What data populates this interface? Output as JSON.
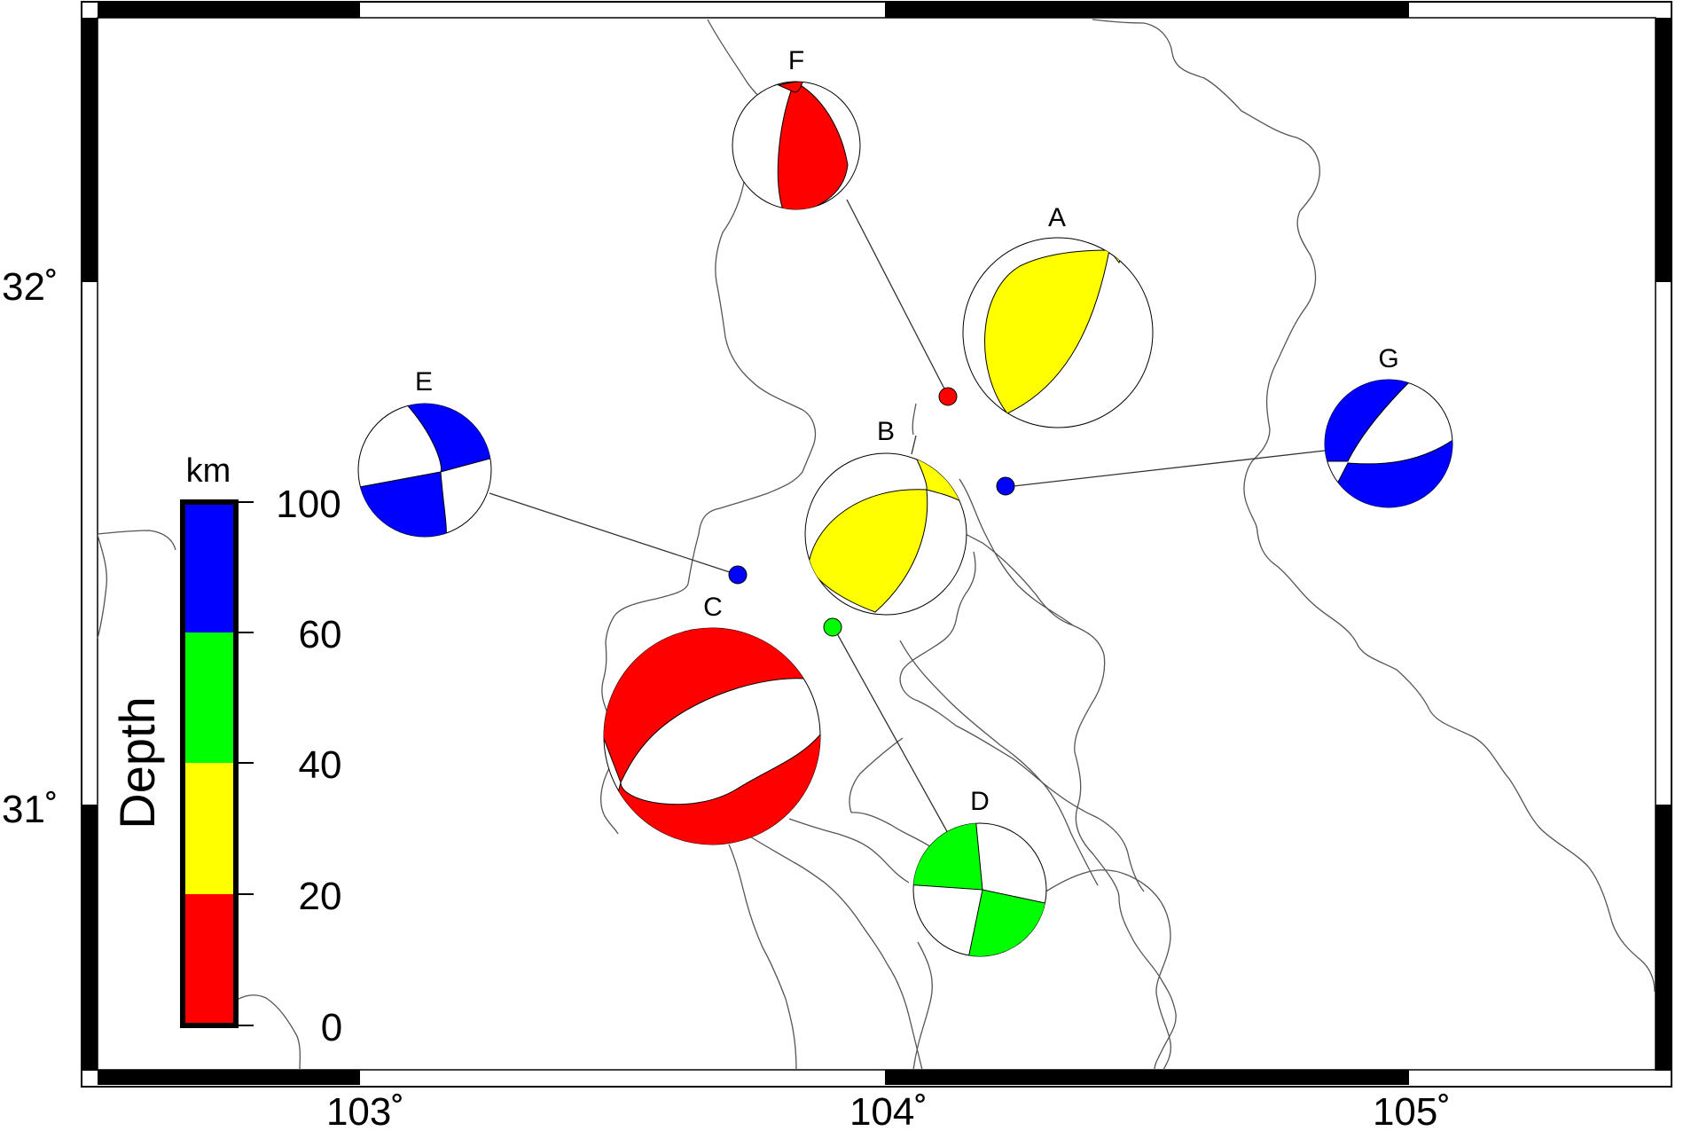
{
  "map": {
    "lon_ticks": [
      "103˚",
      "104˚",
      "105˚"
    ],
    "lat_ticks": [
      "32˚",
      "31˚"
    ]
  },
  "legend": {
    "title": "Depth",
    "unit": "km",
    "ticks": [
      "0",
      "20",
      "40",
      "60",
      "100"
    ],
    "bands": [
      {
        "from": 0,
        "to": 20,
        "color": "#ff0000"
      },
      {
        "from": 20,
        "to": 40,
        "color": "#ffff00"
      },
      {
        "from": 40,
        "to": 60,
        "color": "#00ff00"
      },
      {
        "from": 60,
        "to": 100,
        "color": "#0000ff"
      }
    ]
  },
  "events": [
    {
      "id": "A",
      "depth_color": "#ffff00"
    },
    {
      "id": "B",
      "depth_color": "#ffff00"
    },
    {
      "id": "C",
      "depth_color": "#ff0000"
    },
    {
      "id": "D",
      "depth_color": "#00ff00"
    },
    {
      "id": "E",
      "depth_color": "#0000ff"
    },
    {
      "id": "F",
      "depth_color": "#ff0000"
    },
    {
      "id": "G",
      "depth_color": "#0000ff"
    }
  ]
}
